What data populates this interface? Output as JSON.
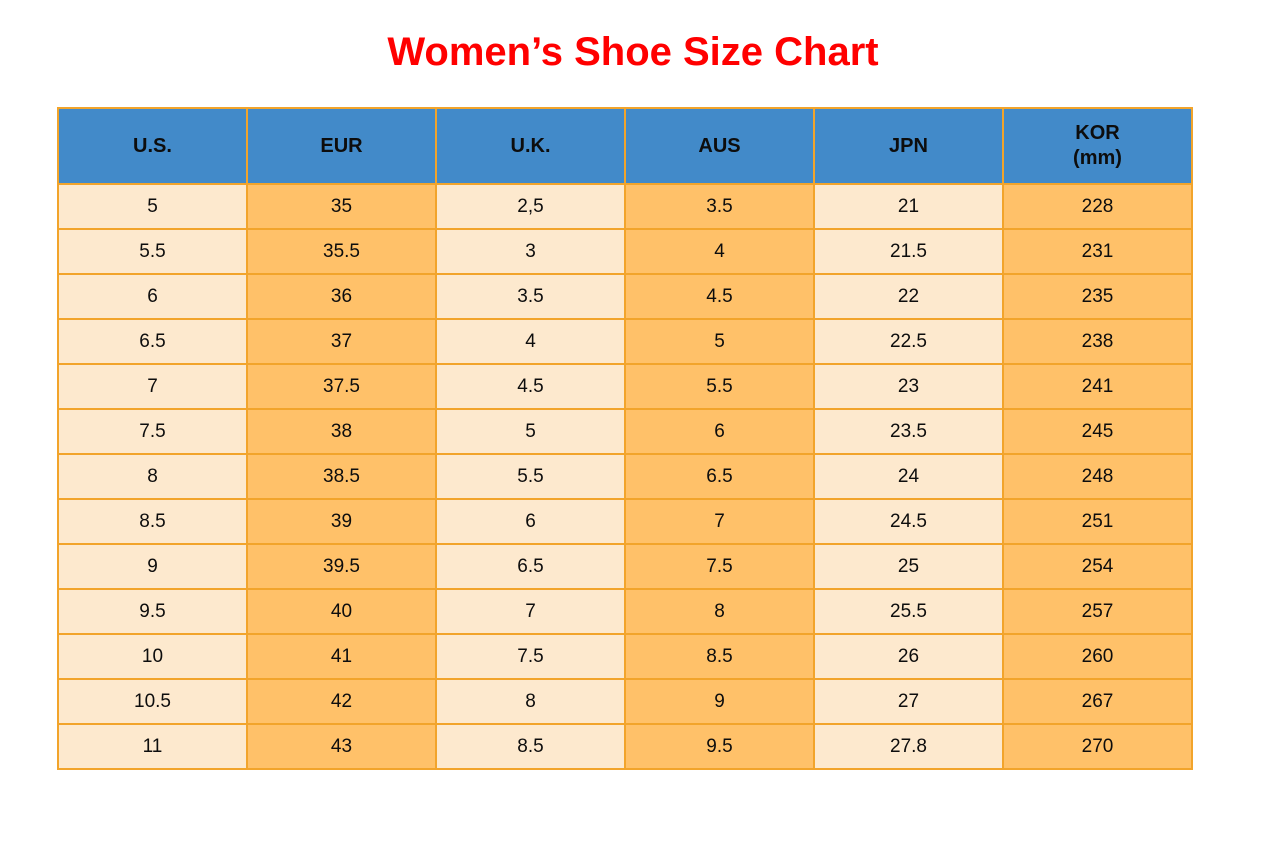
{
  "title": "Women’s Shoe Size Chart",
  "header": {
    "us": "U.S.",
    "eur": "EUR",
    "uk": "U.K.",
    "aus": "AUS",
    "jpn": "JPN",
    "kor_line1": "KOR",
    "kor_line2": "(mm)"
  },
  "chart_data": {
    "type": "table",
    "title": "Women’s Shoe Size Chart",
    "columns": [
      "U.S.",
      "EUR",
      "U.K.",
      "AUS",
      "JPN",
      "KOR (mm)"
    ],
    "rows": [
      [
        "5",
        "35",
        "2,5",
        "3.5",
        "21",
        "228"
      ],
      [
        "5.5",
        "35.5",
        "3",
        "4",
        "21.5",
        "231"
      ],
      [
        "6",
        "36",
        "3.5",
        "4.5",
        "22",
        "235"
      ],
      [
        "6.5",
        "37",
        "4",
        "5",
        "22.5",
        "238"
      ],
      [
        "7",
        "37.5",
        "4.5",
        "5.5",
        "23",
        "241"
      ],
      [
        "7.5",
        "38",
        "5",
        "6",
        "23.5",
        "245"
      ],
      [
        "8",
        "38.5",
        "5.5",
        "6.5",
        "24",
        "248"
      ],
      [
        "8.5",
        "39",
        "6",
        "7",
        "24.5",
        "251"
      ],
      [
        "9",
        "39.5",
        "6.5",
        "7.5",
        "25",
        "254"
      ],
      [
        "9.5",
        "40",
        "7",
        "8",
        "25.5",
        "257"
      ],
      [
        "10",
        "41",
        "7.5",
        "8.5",
        "26",
        "260"
      ],
      [
        "10.5",
        "42",
        "8",
        "9",
        "27",
        "267"
      ],
      [
        "11",
        "43",
        "8.5",
        "9.5",
        "27.8",
        "270"
      ]
    ]
  },
  "colors": {
    "title_red": "#ff0000",
    "header_blue": "#428ac9",
    "cell_cream": "#fde9ce",
    "cell_orange": "#ffc169",
    "grid_orange": "#f2a42b",
    "text_black": "#0d0d0d"
  }
}
